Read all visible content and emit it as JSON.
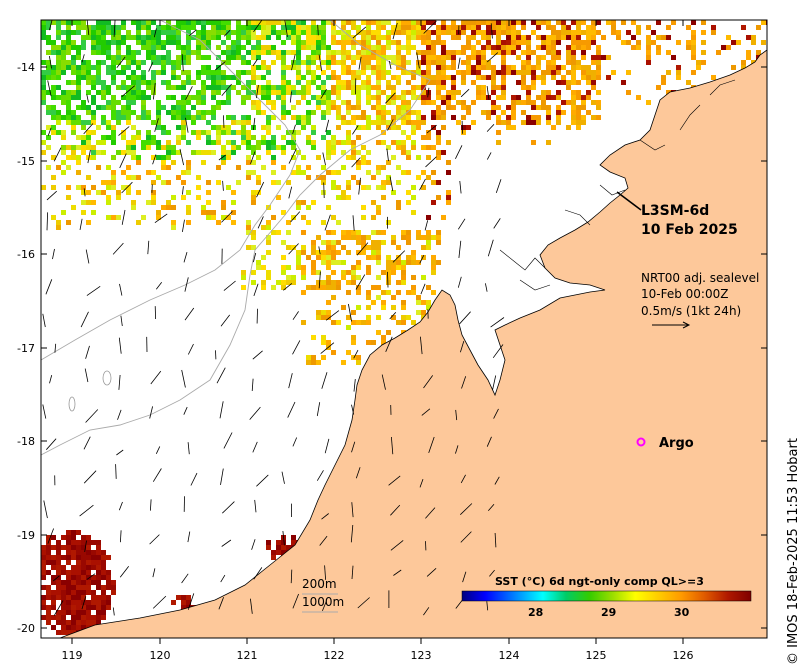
{
  "map": {
    "title_line1": "L3SM-6d",
    "title_line2": "10 Feb 2025",
    "current_info": {
      "line1": "NRT00 adj. sealevel",
      "line2": "10-Feb 00:00Z",
      "line3": "0.5m/s (1kt 24h)"
    },
    "argo_label": "Argo",
    "argo_color": "#ff00ff",
    "bathymetry_labels": [
      "200m",
      "1000m"
    ],
    "credit": "© IMOS 18-Feb-2025 11:53 Hobart",
    "land_color": "#fdc89a",
    "lon_ticks": [
      "119",
      "120",
      "121",
      "122",
      "123",
      "124",
      "125",
      "126"
    ],
    "lat_ticks": [
      "-14",
      "-15",
      "-16",
      "-17",
      "-18",
      "-19",
      "-20"
    ],
    "colorbar": {
      "title": "SST (°C) 6d ngt-only comp QL>=3",
      "ticks": [
        "28",
        "29",
        "30"
      ],
      "colors": [
        "#00007f",
        "#0000ff",
        "#007fff",
        "#00ffff",
        "#00cc66",
        "#33cc00",
        "#99dd00",
        "#ffff00",
        "#ffcc00",
        "#ff9900",
        "#e05a00",
        "#b01800",
        "#7f0000"
      ]
    }
  }
}
